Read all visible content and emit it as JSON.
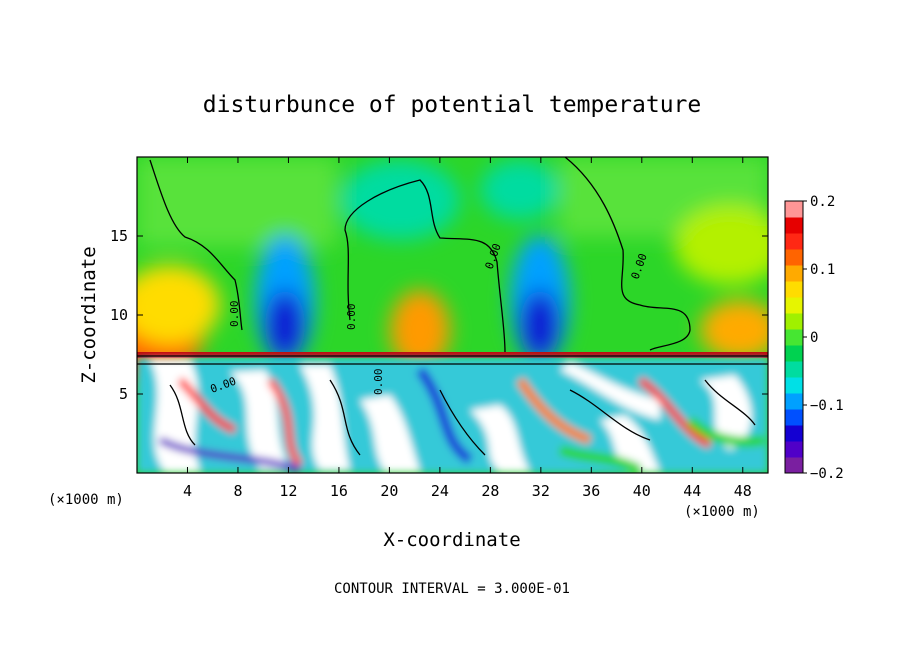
{
  "chart_data": {
    "type": "heatmap",
    "title": "disturbunce of potential temperature",
    "xlabel": "X-coordinate",
    "ylabel": "Z-coordinate",
    "x_unit": "(×1000 m)",
    "x_unit_right": "(×1000 m)",
    "xlim": [
      0,
      50
    ],
    "ylim": [
      0,
      20
    ],
    "x_ticks": [
      4,
      8,
      12,
      16,
      20,
      24,
      28,
      32,
      36,
      40,
      44,
      48
    ],
    "y_ticks": [
      5,
      10,
      15
    ],
    "colorbar": {
      "range": [
        -0.2,
        0.2
      ],
      "tick_labels": [
        "0.2",
        "0.1",
        "0",
        "−0.1",
        "−0.2"
      ],
      "tick_values": [
        0.2,
        0.1,
        0,
        -0.1,
        -0.2
      ],
      "colors": [
        "#7a1fa0",
        "#5000c8",
        "#1400d2",
        "#0050ff",
        "#00a0ff",
        "#00e0e6",
        "#00dca0",
        "#00d250",
        "#46e632",
        "#a0f000",
        "#e6f500",
        "#ffdc00",
        "#ffaa00",
        "#ff6400",
        "#ff2814",
        "#e60000",
        "#ff9696"
      ]
    },
    "contour_interval_label": "CONTOUR INTERVAL = 3.000E-01",
    "contour_labels": [
      "0.00",
      "0.00",
      "0.00",
      "0.00",
      "0.00",
      "0.00"
    ],
    "legend_placement": "right"
  }
}
